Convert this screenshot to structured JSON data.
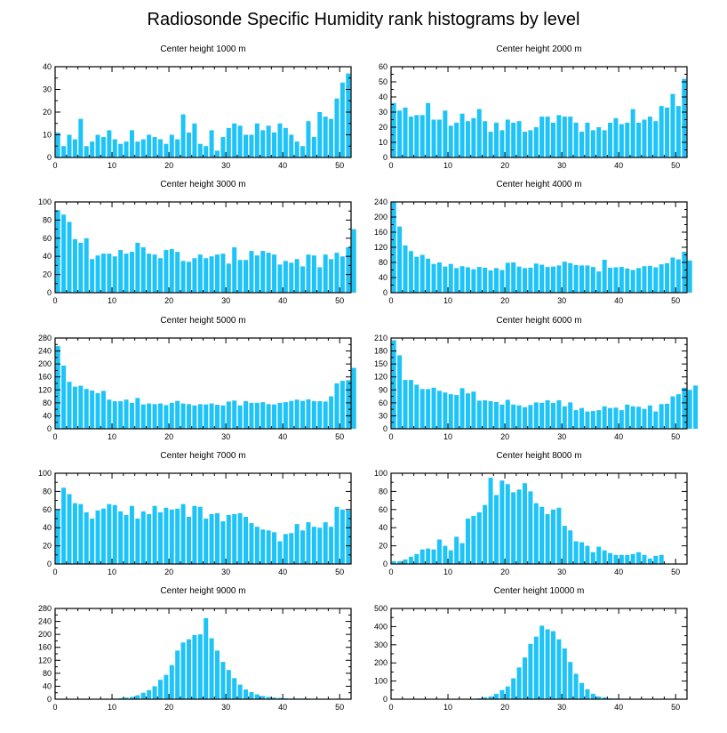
{
  "title": "Radiosonde Specific Humidity rank histograms by level",
  "colors": {
    "bar": "#1ec3f7",
    "axis": "#000000"
  },
  "chart_data": [
    {
      "type": "bar",
      "title": "Center height 1000 m",
      "xlim": [
        0,
        52
      ],
      "ylim": [
        0,
        40
      ],
      "xticks": [
        0,
        10,
        20,
        30,
        40,
        50
      ],
      "yticks": [
        0,
        10,
        20,
        30,
        40
      ],
      "values": [
        11,
        5,
        10,
        8,
        17,
        5,
        7,
        10,
        9,
        12,
        8,
        6,
        7,
        12,
        7,
        8,
        10,
        9,
        8,
        6,
        10,
        8,
        19,
        11,
        15,
        6,
        5,
        12,
        3,
        9,
        13,
        15,
        14,
        10,
        10,
        15,
        12,
        14,
        11,
        15,
        13,
        10,
        7,
        5,
        16,
        9,
        20,
        18,
        17,
        26,
        33,
        37
      ]
    },
    {
      "type": "bar",
      "title": "Center height 2000 m",
      "xlim": [
        0,
        52
      ],
      "ylim": [
        0,
        60
      ],
      "xticks": [
        0,
        10,
        20,
        30,
        40,
        50
      ],
      "yticks": [
        0,
        10,
        20,
        30,
        40,
        50,
        60
      ],
      "values": [
        36,
        31,
        33,
        27,
        28,
        28,
        36,
        25,
        25,
        31,
        21,
        23,
        29,
        24,
        26,
        32,
        24,
        17,
        23,
        18,
        25,
        23,
        24,
        17,
        18,
        20,
        27,
        27,
        23,
        28,
        27,
        27,
        23,
        17,
        23,
        18,
        20,
        18,
        23,
        26,
        22,
        23,
        32,
        23,
        25,
        27,
        24,
        34,
        33,
        42,
        34,
        52
      ]
    },
    {
      "type": "bar",
      "title": "Center height 3000 m",
      "xlim": [
        0,
        52
      ],
      "ylim": [
        0,
        100
      ],
      "xticks": [
        0,
        10,
        20,
        30,
        40,
        50
      ],
      "yticks": [
        0,
        20,
        40,
        60,
        80,
        100
      ],
      "values": [
        91,
        86,
        78,
        59,
        55,
        60,
        37,
        41,
        43,
        43,
        40,
        47,
        43,
        45,
        55,
        50,
        43,
        42,
        38,
        47,
        48,
        45,
        35,
        34,
        38,
        42,
        38,
        40,
        42,
        43,
        32,
        50,
        36,
        36,
        46,
        41,
        46,
        44,
        42,
        31,
        35,
        33,
        37,
        29,
        42,
        41,
        28,
        42,
        37,
        44,
        40,
        50,
        70
      ]
    },
    {
      "type": "bar",
      "title": "Center height 4000 m",
      "xlim": [
        0,
        52
      ],
      "ylim": [
        0,
        240
      ],
      "xticks": [
        0,
        10,
        20,
        30,
        40,
        50
      ],
      "yticks": [
        0,
        40,
        80,
        120,
        160,
        200,
        240
      ],
      "values": [
        240,
        175,
        125,
        110,
        95,
        100,
        90,
        76,
        80,
        69,
        76,
        65,
        70,
        67,
        62,
        68,
        66,
        59,
        65,
        60,
        79,
        80,
        69,
        65,
        66,
        77,
        74,
        68,
        69,
        72,
        82,
        78,
        73,
        72,
        72,
        68,
        56,
        87,
        66,
        67,
        68,
        64,
        60,
        65,
        70,
        71,
        67,
        75,
        78,
        93,
        88,
        108,
        85
      ]
    },
    {
      "type": "bar",
      "title": "Center height 5000 m",
      "xlim": [
        0,
        52
      ],
      "ylim": [
        0,
        280
      ],
      "xticks": [
        0,
        10,
        20,
        30,
        40,
        50
      ],
      "yticks": [
        0,
        40,
        80,
        120,
        160,
        200,
        240,
        280
      ],
      "values": [
        255,
        195,
        145,
        130,
        133,
        123,
        118,
        110,
        117,
        90,
        85,
        85,
        90,
        80,
        95,
        75,
        78,
        76,
        78,
        73,
        80,
        86,
        78,
        76,
        72,
        76,
        75,
        78,
        74,
        72,
        84,
        87,
        72,
        85,
        80,
        80,
        82,
        76,
        75,
        80,
        82,
        86,
        90,
        86,
        91,
        85,
        85,
        84,
        100,
        140,
        148,
        150,
        188
      ]
    },
    {
      "type": "bar",
      "title": "Center height 6000 m",
      "xlim": [
        0,
        52
      ],
      "ylim": [
        0,
        210
      ],
      "xticks": [
        0,
        10,
        20,
        30,
        40,
        50
      ],
      "yticks": [
        0,
        30,
        60,
        90,
        120,
        150,
        180,
        210
      ],
      "values": [
        205,
        170,
        113,
        113,
        102,
        92,
        92,
        95,
        88,
        84,
        80,
        78,
        94,
        82,
        86,
        65,
        66,
        64,
        62,
        56,
        67,
        56,
        54,
        50,
        55,
        61,
        60,
        66,
        60,
        66,
        52,
        61,
        43,
        48,
        40,
        41,
        43,
        52,
        48,
        49,
        43,
        56,
        52,
        51,
        46,
        54,
        40,
        57,
        58,
        75,
        80,
        95,
        90,
        100
      ]
    },
    {
      "type": "bar",
      "title": "Center height 7000 m",
      "xlim": [
        0,
        52
      ],
      "ylim": [
        0,
        100
      ],
      "xticks": [
        0,
        10,
        20,
        30,
        40,
        50
      ],
      "yticks": [
        0,
        20,
        40,
        60,
        80,
        100
      ],
      "values": [
        60,
        84,
        77,
        67,
        66,
        57,
        50,
        59,
        61,
        66,
        65,
        58,
        54,
        64,
        50,
        58,
        55,
        64,
        57,
        62,
        60,
        61,
        66,
        52,
        64,
        63,
        50,
        55,
        56,
        47,
        54,
        55,
        56,
        52,
        45,
        41,
        38,
        37,
        35,
        25,
        33,
        34,
        44,
        37,
        46,
        41,
        40,
        46,
        41,
        63,
        60,
        59
      ]
    },
    {
      "type": "bar",
      "title": "Center height 8000 m",
      "xlim": [
        0,
        52
      ],
      "ylim": [
        0,
        100
      ],
      "xticks": [
        0,
        10,
        20,
        30,
        40,
        50
      ],
      "yticks": [
        0,
        20,
        40,
        60,
        80,
        100
      ],
      "values": [
        3,
        3,
        5,
        8,
        11,
        16,
        17,
        16,
        27,
        20,
        15,
        30,
        23,
        50,
        53,
        57,
        65,
        95,
        76,
        92,
        88,
        79,
        82,
        89,
        80,
        67,
        63,
        55,
        60,
        62,
        42,
        37,
        25,
        24,
        20,
        13,
        19,
        15,
        12,
        10,
        10,
        10,
        11,
        13,
        10,
        6,
        9,
        10
      ]
    },
    {
      "type": "bar",
      "title": "Center height 9000 m",
      "xlim": [
        0,
        52
      ],
      "ylim": [
        0,
        280
      ],
      "xticks": [
        0,
        10,
        20,
        30,
        40,
        50
      ],
      "yticks": [
        0,
        40,
        80,
        120,
        160,
        200,
        240,
        280
      ],
      "values": [
        0,
        0,
        0,
        0,
        0,
        0,
        0,
        0,
        0,
        1,
        2,
        3,
        5,
        7,
        12,
        20,
        28,
        40,
        60,
        75,
        105,
        150,
        175,
        185,
        198,
        200,
        250,
        188,
        150,
        115,
        90,
        65,
        45,
        30,
        22,
        15,
        10,
        7,
        5,
        4,
        3,
        2,
        2,
        2,
        2,
        1,
        1,
        1,
        1,
        1,
        1
      ]
    },
    {
      "type": "bar",
      "title": "Center height 10000 m",
      "xlim": [
        0,
        52
      ],
      "ylim": [
        0,
        500
      ],
      "xticks": [
        0,
        10,
        20,
        30,
        40,
        50
      ],
      "yticks": [
        0,
        100,
        200,
        300,
        400,
        500
      ],
      "values": [
        0,
        0,
        0,
        0,
        0,
        0,
        0,
        0,
        0,
        0,
        0,
        0,
        0,
        0,
        0,
        5,
        10,
        15,
        30,
        50,
        70,
        115,
        175,
        230,
        305,
        345,
        405,
        385,
        375,
        330,
        280,
        205,
        140,
        90,
        55,
        30,
        15,
        10,
        5,
        4,
        2,
        2,
        1,
        1,
        1,
        1,
        1,
        1,
        1,
        1,
        1
      ]
    }
  ]
}
